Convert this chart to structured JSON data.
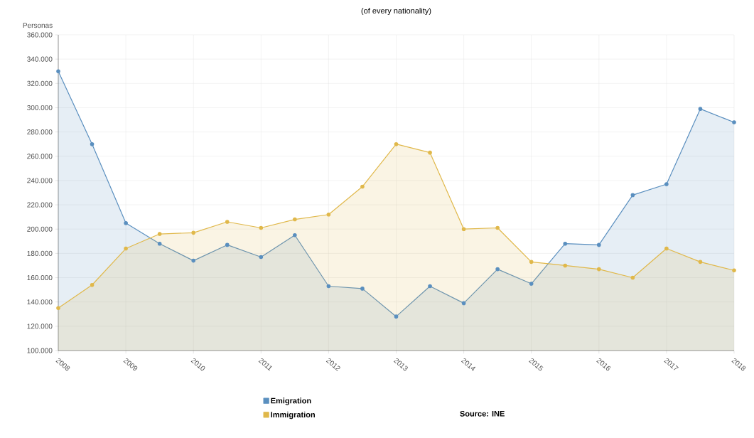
{
  "chart_data": {
    "type": "area",
    "title": "(of every nationality)",
    "ylabel": "Personas",
    "x": [
      2008,
      2008.5,
      2009,
      2009.5,
      2010,
      2010.5,
      2011,
      2011.5,
      2012,
      2012.5,
      2013,
      2013.5,
      2014,
      2014.5,
      2015,
      2015.5,
      2016,
      2016.5,
      2017,
      2017.5,
      2018
    ],
    "series": [
      {
        "name": "Emigration",
        "color": "#5a8fbf",
        "values": [
          330000,
          270000,
          205000,
          188000,
          174000,
          187000,
          177000,
          195000,
          153000,
          151000,
          128000,
          153000,
          139000,
          167000,
          155000,
          188000,
          187000,
          228000,
          237000,
          299000,
          288000
        ]
      },
      {
        "name": "Immigration",
        "color": "#e0b84a",
        "values": [
          135000,
          154000,
          184000,
          196000,
          197000,
          206000,
          201000,
          208000,
          212000,
          235000,
          270000,
          263000,
          200000,
          201000,
          173000,
          170000,
          167000,
          160000,
          184000,
          173000,
          166000
        ]
      }
    ],
    "xlim": [
      2008,
      2018
    ],
    "xticks": [
      2008,
      2009,
      2010,
      2011,
      2012,
      2013,
      2014,
      2015,
      2016,
      2017,
      2018
    ],
    "ylim": [
      100000,
      360000
    ],
    "yticks": [
      {
        "value": 100000,
        "label": "100.000"
      },
      {
        "value": 120000,
        "label": "120.000"
      },
      {
        "value": 140000,
        "label": "140.000"
      },
      {
        "value": 160000,
        "label": "160.000"
      },
      {
        "value": 180000,
        "label": "180.000"
      },
      {
        "value": 200000,
        "label": "200.000"
      },
      {
        "value": 220000,
        "label": "220.000"
      },
      {
        "value": 240000,
        "label": "240.000"
      },
      {
        "value": 260000,
        "label": "260.000"
      },
      {
        "value": 280000,
        "label": "280.000"
      },
      {
        "value": 300000,
        "label": "300.000"
      },
      {
        "value": 320000,
        "label": "320.000"
      },
      {
        "value": 340000,
        "label": "340.000"
      },
      {
        "value": 360000,
        "label": "360.000"
      }
    ],
    "grid": true,
    "marker": "circle",
    "legend": "bottom",
    "annotations": [
      "Source: INE"
    ]
  }
}
